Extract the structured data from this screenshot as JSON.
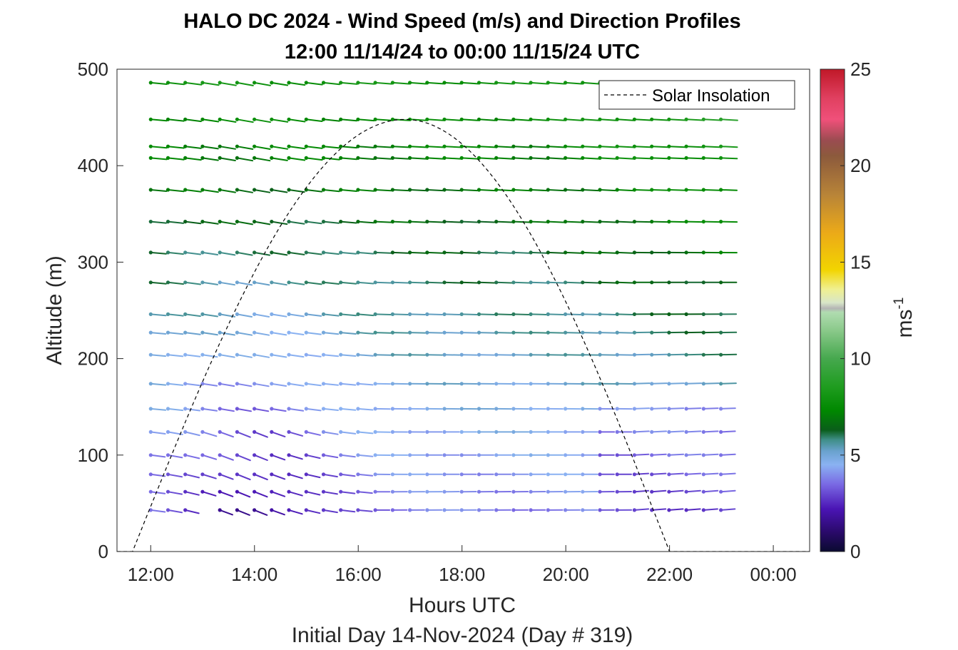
{
  "chart_data": {
    "type": "wind-barb-profile",
    "title": "HALO DC 2024 - Wind Speed (m/s) and Direction Profiles",
    "subtitle": "12:00 11/14/24 to 00:00 11/15/24  UTC",
    "xlabel": "Hours UTC",
    "xlabel2": "Initial Day 14-Nov-2024 (Day # 319)",
    "ylabel": "Altitude (m)",
    "xlim": [
      11.35,
      24.7
    ],
    "ylim": [
      0,
      500
    ],
    "x_ticks": [
      {
        "value": 12,
        "label": "12:00"
      },
      {
        "value": 14,
        "label": "14:00"
      },
      {
        "value": 16,
        "label": "16:00"
      },
      {
        "value": 18,
        "label": "18:00"
      },
      {
        "value": 20,
        "label": "20:00"
      },
      {
        "value": 22,
        "label": "22:00"
      },
      {
        "value": 24,
        "label": "00:00"
      }
    ],
    "y_ticks": [
      {
        "value": 0,
        "label": "0"
      },
      {
        "value": 100,
        "label": "100"
      },
      {
        "value": 200,
        "label": "200"
      },
      {
        "value": 300,
        "label": "300"
      },
      {
        "value": 400,
        "label": "400"
      },
      {
        "value": 500,
        "label": "500"
      }
    ],
    "colorbar": {
      "label": "ms",
      "label_exponent": "-1",
      "range": [
        0,
        25
      ],
      "ticks": [
        {
          "value": 0,
          "label": "0"
        },
        {
          "value": 5,
          "label": "5"
        },
        {
          "value": 10,
          "label": "10"
        },
        {
          "value": 15,
          "label": "15"
        },
        {
          "value": 20,
          "label": "20"
        },
        {
          "value": 25,
          "label": "25"
        }
      ],
      "stops": [
        {
          "v": 0,
          "c": "#0a0a30"
        },
        {
          "v": 1,
          "c": "#2a0a6a"
        },
        {
          "v": 2.2,
          "c": "#4a14b4"
        },
        {
          "v": 3.5,
          "c": "#7a6ae4"
        },
        {
          "v": 4.5,
          "c": "#8ab2f2"
        },
        {
          "v": 5.2,
          "c": "#6aa2ce"
        },
        {
          "v": 5.8,
          "c": "#3e8e86"
        },
        {
          "v": 6.3,
          "c": "#0a5e1a"
        },
        {
          "v": 7.3,
          "c": "#008800"
        },
        {
          "v": 8.5,
          "c": "#1e9c1e"
        },
        {
          "v": 10,
          "c": "#46a84e"
        },
        {
          "v": 11.5,
          "c": "#8cca8c"
        },
        {
          "v": 12.4,
          "c": "#b0dcb0"
        },
        {
          "v": 12.6,
          "c": "#b4b4b4"
        },
        {
          "v": 12.9,
          "c": "#d8e6c8"
        },
        {
          "v": 13.6,
          "c": "#f0f090"
        },
        {
          "v": 14.6,
          "c": "#f2d400"
        },
        {
          "v": 16.5,
          "c": "#ecaa18"
        },
        {
          "v": 18.5,
          "c": "#b88438"
        },
        {
          "v": 20.5,
          "c": "#8c5a3c"
        },
        {
          "v": 21.3,
          "c": "#9a4c50"
        },
        {
          "v": 22.4,
          "c": "#f0507a"
        },
        {
          "v": 23.5,
          "c": "#e04060"
        },
        {
          "v": 25,
          "c": "#c01828"
        }
      ]
    },
    "legend": {
      "entries": [
        "Solar Insolation"
      ],
      "placement": "top-right"
    },
    "solar_insolation": {
      "rise_hour": 11.65,
      "set_hour": 22.0,
      "peak_hour": 16.9,
      "peak_altitude": 448
    },
    "profile_altitudes": [
      43,
      62,
      80,
      100,
      124,
      148,
      174,
      204,
      227,
      246,
      279,
      310,
      342,
      375,
      408,
      420,
      448,
      486
    ],
    "time_start": 12.0,
    "time_end": 23.0,
    "time_step": 0.333,
    "wind_field_note": "speeds in m/s; direction westerly, roughly 1-3 m/s at low altitude midday, 5-9 m/s aloft"
  }
}
